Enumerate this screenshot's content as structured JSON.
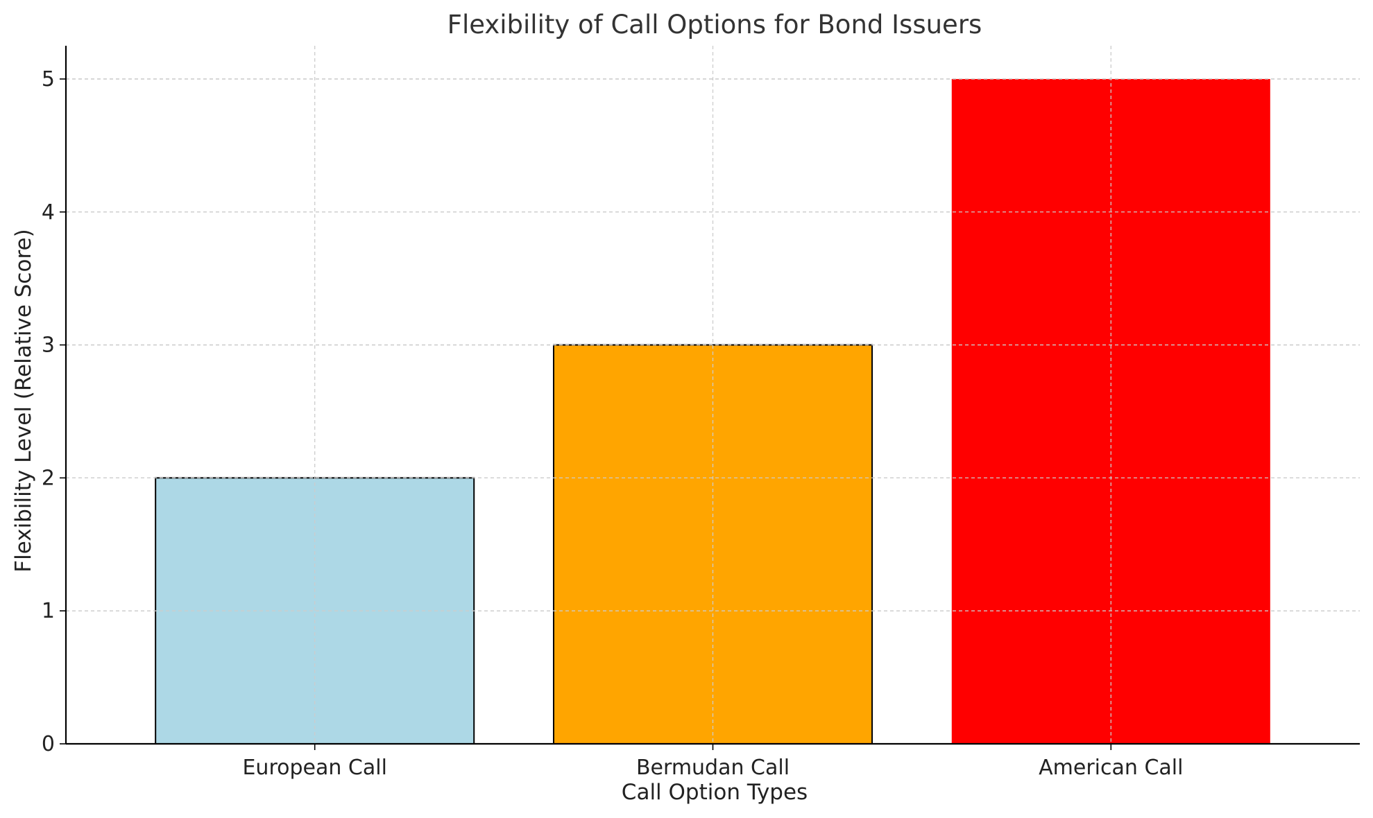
{
  "chart_data": {
    "type": "bar",
    "title": "Flexibility of Call Options for Bond Issuers",
    "xlabel": "Call Option Types",
    "ylabel": "Flexibility Level (Relative Score)",
    "categories": [
      "European Call",
      "Bermudan Call",
      "American Call"
    ],
    "values": [
      2,
      3,
      5
    ],
    "colors": [
      "#add8e6",
      "#ffa500",
      "#ff0000"
    ],
    "edge_colors": [
      "#000000",
      "#000000",
      "none"
    ],
    "ylim": [
      0,
      5.25
    ],
    "yticks": [
      0,
      1,
      2,
      3,
      4,
      5
    ],
    "grid": true
  }
}
